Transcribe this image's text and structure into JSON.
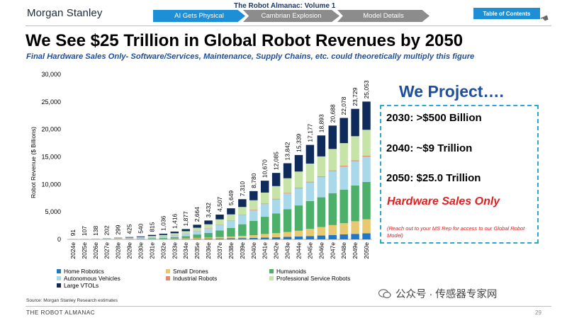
{
  "header": {
    "logo": "Morgan Stanley",
    "volume_title": "The Robot Almanac: Volume 1",
    "nav": [
      "AI Gets Physical",
      "Cambrian Explosion",
      "Model Details"
    ],
    "toc_label": "Table of Contents"
  },
  "headline": "We See $25 Trillion in Global Robot Revenues by 2050",
  "subheadline": "Final Hardware Sales Only- Software/Services, Maintenance, Supply Chains, etc. could theoretically multiply this figure",
  "projection": {
    "title": "We Project….",
    "lines": [
      "2030: >$500 Billion",
      "2040: ~$9 Trillion",
      "2050: $25.0 Trillion"
    ],
    "hardware_note": "Hardware Sales Only",
    "small_note": "(Reach out to your MS Rep for access to our Global Robot Model)"
  },
  "chart_data": {
    "type": "bar",
    "stacked": true,
    "title": "",
    "xlabel": "",
    "ylabel": "Robot Revenue ($ Billions)",
    "ylim": [
      0,
      30000
    ],
    "yticks": [
      "0",
      "5,000",
      "10,000",
      "15,000",
      "20,000",
      "25,000",
      "30,000"
    ],
    "categories": [
      "2024e",
      "2025e",
      "2026e",
      "2027e",
      "2028e",
      "2029e",
      "2030e",
      "2031e",
      "2032e",
      "2033e",
      "2034e",
      "2035e",
      "2036e",
      "2037e",
      "2038e",
      "2039e",
      "2040e",
      "2041e",
      "2042e",
      "2043e",
      "2044e",
      "2045e",
      "2046e",
      "2047e",
      "2048e",
      "2049e",
      "2050e"
    ],
    "totals": [
      91,
      107,
      138,
      202,
      299,
      425,
      540,
      815,
      1036,
      1416,
      1877,
      2664,
      3432,
      4507,
      5649,
      7310,
      8780,
      10670,
      12085,
      13842,
      15339,
      17177,
      18893,
      20688,
      22078,
      23729,
      25053
    ],
    "total_labels": [
      "91",
      "107",
      "138",
      "202",
      "299",
      "425",
      "540",
      "815",
      "1,036",
      "1,416",
      "1,877",
      "2,664",
      "3,432",
      "4,507",
      "5,649",
      "7,310",
      "8,780",
      "10,670",
      "12,085",
      "13,842",
      "15,339",
      "17,177",
      "18,893",
      "20,688",
      "22,078",
      "23,729",
      "25,053"
    ],
    "series": [
      {
        "name": "Home Robotics",
        "color": "#1f77c8",
        "values": [
          20,
          22,
          25,
          30,
          38,
          45,
          52,
          60,
          70,
          80,
          95,
          110,
          130,
          160,
          190,
          230,
          270,
          330,
          380,
          450,
          520,
          600,
          700,
          800,
          900,
          1000,
          1100
        ]
      },
      {
        "name": "Small Drones",
        "color": "#e8c870",
        "values": [
          25,
          28,
          32,
          38,
          45,
          52,
          55,
          70,
          80,
          100,
          120,
          160,
          200,
          260,
          320,
          420,
          500,
          650,
          750,
          900,
          1050,
          1300,
          1550,
          1800,
          2050,
          2300,
          2550
        ]
      },
      {
        "name": "Humanoids",
        "color": "#4caf6a",
        "values": [
          0,
          0,
          0,
          2,
          5,
          10,
          15,
          60,
          120,
          220,
          360,
          620,
          840,
          1190,
          1550,
          2100,
          2600,
          3130,
          3600,
          4150,
          4600,
          5060,
          5400,
          5800,
          6100,
          6500,
          6800
        ]
      },
      {
        "name": "Autonomous Vehicles",
        "color": "#a8d8ea",
        "values": [
          10,
          14,
          20,
          35,
          60,
          95,
          120,
          180,
          240,
          330,
          430,
          620,
          800,
          1050,
          1300,
          1650,
          1950,
          2300,
          2550,
          2850,
          3100,
          3400,
          3700,
          4000,
          4200,
          4400,
          4600
        ]
      },
      {
        "name": "Industrial Robots",
        "color": "#e6896a",
        "values": [
          16,
          20,
          24,
          30,
          36,
          40,
          42,
          50,
          55,
          60,
          65,
          70,
          75,
          80,
          85,
          90,
          95,
          100,
          105,
          110,
          115,
          120,
          130,
          140,
          150,
          160,
          170
        ]
      },
      {
        "name": "Professional Service Robots",
        "color": "#c6e3a8",
        "values": [
          15,
          18,
          22,
          35,
          55,
          85,
          125,
          190,
          240,
          330,
          420,
          540,
          700,
          900,
          1100,
          1400,
          1700,
          2000,
          2300,
          2650,
          2950,
          3300,
          3600,
          3900,
          4100,
          4400,
          4700
        ]
      },
      {
        "name": "Large VTOLs",
        "color": "#0f2b5b",
        "values": [
          5,
          5,
          15,
          32,
          60,
          98,
          131,
          205,
          231,
          296,
          387,
          544,
          687,
          867,
          1104,
          1420,
          1665,
          2160,
          2400,
          2732,
          3004,
          3397,
          3813,
          4248,
          4578,
          4969,
          5133
        ]
      }
    ],
    "legend_position": "bottom",
    "grid": false,
    "source": "Source: Morgan Stanley Research estimates"
  },
  "footer": {
    "left": "THE ROBOT ALMANAC",
    "page": "29",
    "watermark": "公众号 · 传感器专家网"
  }
}
